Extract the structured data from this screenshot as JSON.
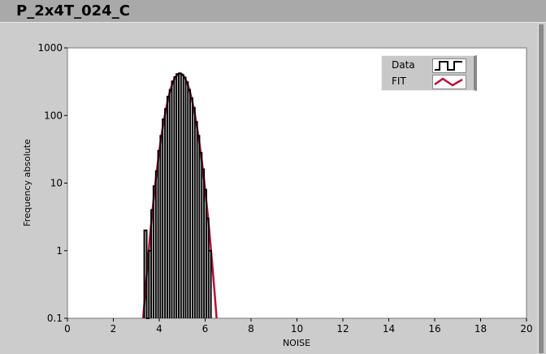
{
  "title": "P_2x4T_024_C",
  "chart_data": {
    "type": "line",
    "xlabel": "NOISE",
    "ylabel": "Frequency absolute",
    "xlim": [
      0,
      20
    ],
    "ylim": [
      0.1,
      1000
    ],
    "yscale": "log",
    "grid": false,
    "legend_position": "top-right",
    "x_ticks": [
      "0",
      "2",
      "4",
      "6",
      "8",
      "10",
      "12",
      "14",
      "16",
      "18",
      "20"
    ],
    "y_ticks": [
      "0.1",
      "1",
      "10",
      "100",
      "1000"
    ],
    "colors": {
      "Data": "#000000",
      "FIT": "#b5103c"
    },
    "series": [
      {
        "name": "Data",
        "style": "step",
        "bin_width": 0.1,
        "x": [
          3.4,
          3.5,
          3.6,
          3.7,
          3.8,
          3.9,
          4.0,
          4.1,
          4.2,
          4.3,
          4.4,
          4.5,
          4.6,
          4.7,
          4.8,
          4.9,
          5.0,
          5.1,
          5.2,
          5.3,
          5.4,
          5.5,
          5.6,
          5.7,
          5.8,
          5.9,
          6.0,
          6.1,
          6.2
        ],
        "y": [
          2,
          0,
          1,
          4,
          9,
          15,
          30,
          50,
          88,
          125,
          190,
          240,
          320,
          370,
          410,
          420,
          400,
          365,
          310,
          240,
          180,
          130,
          80,
          50,
          28,
          16,
          8,
          3,
          1
        ]
      },
      {
        "name": "FIT",
        "style": "line",
        "x": [
          3.3,
          3.4,
          3.5,
          3.6,
          3.7,
          3.8,
          3.9,
          4.0,
          4.1,
          4.2,
          4.3,
          4.4,
          4.5,
          4.6,
          4.7,
          4.8,
          4.9,
          5.0,
          5.1,
          5.2,
          5.3,
          5.4,
          5.5,
          5.6,
          5.7,
          5.8,
          5.9,
          6.0,
          6.1,
          6.2,
          6.3,
          6.4,
          6.5
        ],
        "y": [
          0.1,
          0.27,
          0.68,
          1.7,
          3.8,
          8,
          16,
          29.7,
          52,
          84,
          129,
          185,
          249,
          313,
          368,
          406,
          420,
          406,
          368,
          313,
          249,
          185,
          129,
          84,
          52,
          29.7,
          16,
          8,
          3.8,
          1.7,
          0.68,
          0.27,
          0.1
        ]
      }
    ]
  }
}
